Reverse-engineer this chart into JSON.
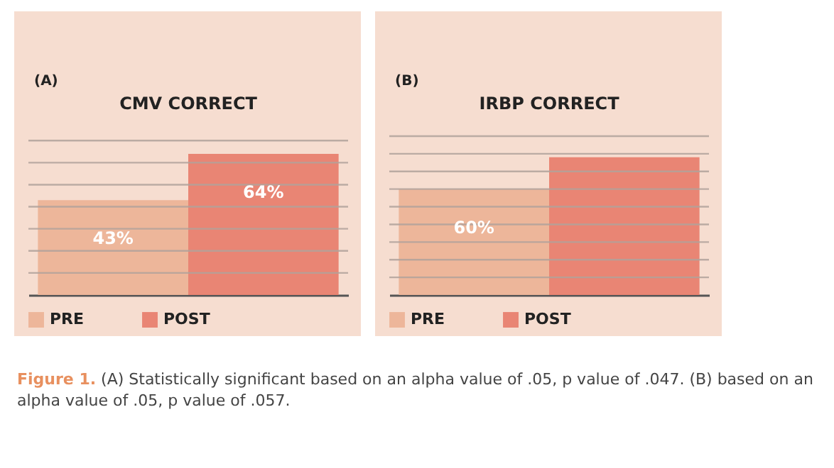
{
  "chart_data": [
    {
      "type": "bar",
      "subtitle": "(A)",
      "title": "CMV CORRECT",
      "categories": [
        null
      ],
      "series": [
        {
          "name": "PRE",
          "color": "#ecb397",
          "values": [
            43
          ],
          "value_labels": [
            "43%"
          ]
        },
        {
          "name": "POST",
          "color": "#e8806f",
          "values": [
            64
          ],
          "value_labels": [
            "64%"
          ]
        }
      ],
      "ylim": [
        0,
        72
      ],
      "yticks": [
        {
          "value": 10,
          "label": null
        },
        {
          "value": 20,
          "label": null
        },
        {
          "value": 30,
          "label": null
        },
        {
          "value": 40,
          "label": null
        },
        {
          "value": 50,
          "label": null
        },
        {
          "value": 60,
          "label": null
        },
        {
          "value": 70,
          "label": null
        }
      ],
      "grid": "y",
      "legend": "bottom",
      "annotations": [
        "Figure 1. (A) Statistically significant based on an alpha value of .05, p value of .047."
      ]
    },
    {
      "type": "bar",
      "subtitle": "(B)",
      "title": "IRBP CORRECT",
      "categories": [
        null
      ],
      "series": [
        {
          "name": "PRE",
          "color": "#ecb397",
          "values": [
            60
          ],
          "value_labels": [
            "60%"
          ]
        },
        {
          "name": "POST",
          "color": "#e8806f",
          "values": [
            78
          ],
          "value_labels": [
            null
          ]
        }
      ],
      "ylim": [
        0,
        90
      ],
      "yticks": [
        {
          "value": 10,
          "label": null
        },
        {
          "value": 20,
          "label": null
        },
        {
          "value": 30,
          "label": null
        },
        {
          "value": 40,
          "label": null
        },
        {
          "value": 50,
          "label": null
        },
        {
          "value": 60,
          "label": null
        },
        {
          "value": 70,
          "label": null
        },
        {
          "value": 80,
          "label": null
        },
        {
          "value": 90,
          "label": null
        }
      ],
      "grid": "y",
      "legend": "bottom",
      "annotations": [
        "(B) based on an alpha value of .05, p value of .057."
      ]
    }
  ]
}
